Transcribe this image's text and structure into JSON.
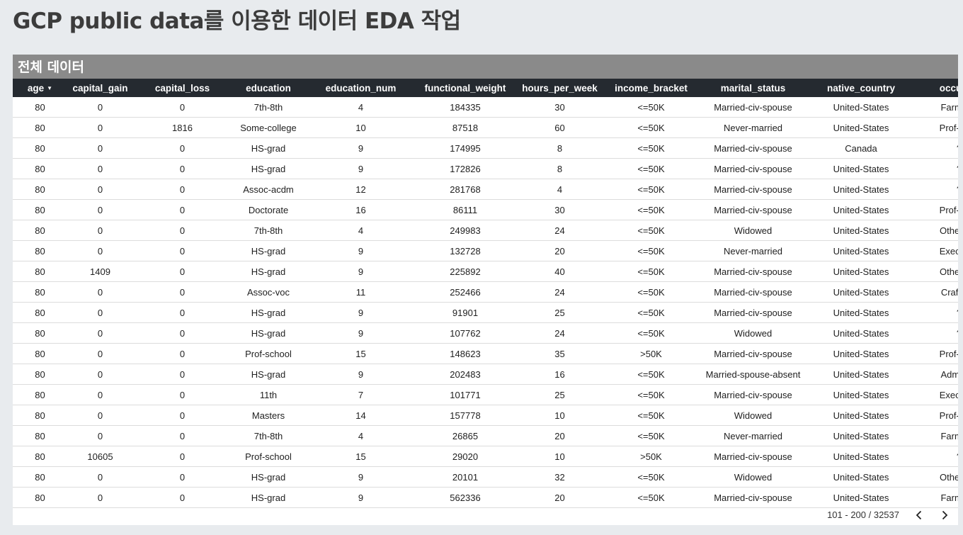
{
  "page": {
    "title": "GCP public data를 이용한 데이터 EDA 작업"
  },
  "panel": {
    "title": "전체 데이터"
  },
  "table": {
    "columns": [
      "age",
      "capital_gain",
      "capital_loss",
      "education",
      "education_num",
      "functional_weight",
      "hours_per_week",
      "income_bracket",
      "marital_status",
      "native_country",
      "occupati"
    ],
    "sort_column": "age",
    "rows": [
      [
        "80",
        "0",
        "0",
        "7th-8th",
        "4",
        "184335",
        "30",
        "<=50K",
        "Married-civ-spouse",
        "United-States",
        "Farming-"
      ],
      [
        "80",
        "0",
        "1816",
        "Some-college",
        "10",
        "87518",
        "60",
        "<=50K",
        "Never-married",
        "United-States",
        "Prof-spec"
      ],
      [
        "80",
        "0",
        "0",
        "HS-grad",
        "9",
        "174995",
        "8",
        "<=50K",
        "Married-civ-spouse",
        "Canada",
        "?"
      ],
      [
        "80",
        "0",
        "0",
        "HS-grad",
        "9",
        "172826",
        "8",
        "<=50K",
        "Married-civ-spouse",
        "United-States",
        "?"
      ],
      [
        "80",
        "0",
        "0",
        "Assoc-acdm",
        "12",
        "281768",
        "4",
        "<=50K",
        "Married-civ-spouse",
        "United-States",
        "?"
      ],
      [
        "80",
        "0",
        "0",
        "Doctorate",
        "16",
        "86111",
        "30",
        "<=50K",
        "Married-civ-spouse",
        "United-States",
        "Prof-spec"
      ],
      [
        "80",
        "0",
        "0",
        "7th-8th",
        "4",
        "249983",
        "24",
        "<=50K",
        "Widowed",
        "United-States",
        "Other-ser"
      ],
      [
        "80",
        "0",
        "0",
        "HS-grad",
        "9",
        "132728",
        "20",
        "<=50K",
        "Never-married",
        "United-States",
        "Exec-mar"
      ],
      [
        "80",
        "1409",
        "0",
        "HS-grad",
        "9",
        "225892",
        "40",
        "<=50K",
        "Married-civ-spouse",
        "United-States",
        "Other-ser"
      ],
      [
        "80",
        "0",
        "0",
        "Assoc-voc",
        "11",
        "252466",
        "24",
        "<=50K",
        "Married-civ-spouse",
        "United-States",
        "Craft-rep"
      ],
      [
        "80",
        "0",
        "0",
        "HS-grad",
        "9",
        "91901",
        "25",
        "<=50K",
        "Married-civ-spouse",
        "United-States",
        "?"
      ],
      [
        "80",
        "0",
        "0",
        "HS-grad",
        "9",
        "107762",
        "24",
        "<=50K",
        "Widowed",
        "United-States",
        "?"
      ],
      [
        "80",
        "0",
        "0",
        "Prof-school",
        "15",
        "148623",
        "35",
        ">50K",
        "Married-civ-spouse",
        "United-States",
        "Prof-spec"
      ],
      [
        "80",
        "0",
        "0",
        "HS-grad",
        "9",
        "202483",
        "16",
        "<=50K",
        "Married-spouse-absent",
        "United-States",
        "Adm-cler"
      ],
      [
        "80",
        "0",
        "0",
        "11th",
        "7",
        "101771",
        "25",
        "<=50K",
        "Married-civ-spouse",
        "United-States",
        "Exec-mar"
      ],
      [
        "80",
        "0",
        "0",
        "Masters",
        "14",
        "157778",
        "10",
        "<=50K",
        "Widowed",
        "United-States",
        "Prof-spec"
      ],
      [
        "80",
        "0",
        "0",
        "7th-8th",
        "4",
        "26865",
        "20",
        "<=50K",
        "Never-married",
        "United-States",
        "Farming-"
      ],
      [
        "80",
        "10605",
        "0",
        "Prof-school",
        "15",
        "29020",
        "10",
        ">50K",
        "Married-civ-spouse",
        "United-States",
        "?"
      ],
      [
        "80",
        "0",
        "0",
        "HS-grad",
        "9",
        "20101",
        "32",
        "<=50K",
        "Widowed",
        "United-States",
        "Other-ser"
      ],
      [
        "80",
        "0",
        "0",
        "HS-grad",
        "9",
        "562336",
        "20",
        "<=50K",
        "Married-civ-spouse",
        "United-States",
        "Farming-"
      ]
    ]
  },
  "pagination": {
    "label": "101 - 200 / 32537"
  },
  "icons": {
    "sort": "sort-desc-icon",
    "prev": "chevron-left-icon",
    "next": "chevron-right-icon"
  },
  "colors": {
    "background": "#e8ebee",
    "panel_header": "#8a8a8a",
    "table_header": "#252a30"
  }
}
